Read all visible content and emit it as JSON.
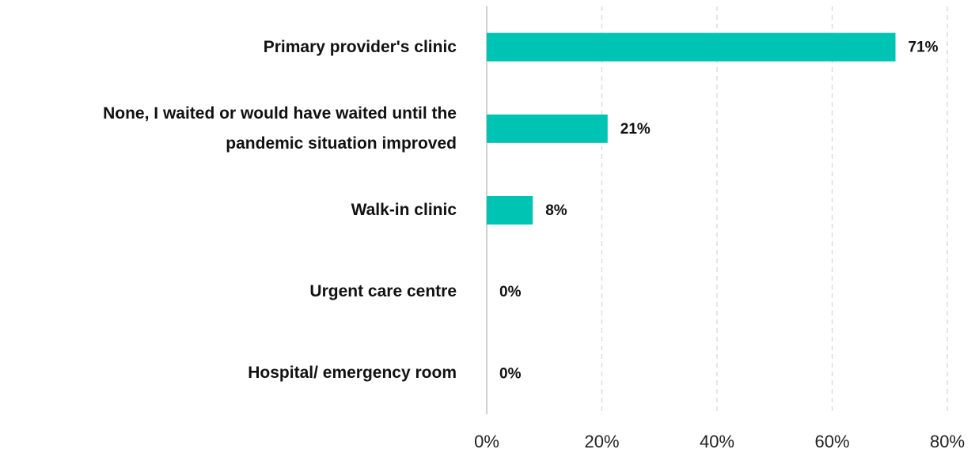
{
  "chart_data": {
    "type": "bar",
    "orientation": "horizontal",
    "categories": [
      "Primary provider's clinic",
      "None, I waited or would have waited until the pandemic situation improved",
      "Walk-in clinic",
      "Urgent care centre",
      "Hospital/ emergency room"
    ],
    "values": [
      71,
      21,
      8,
      0,
      0
    ],
    "value_labels": [
      "71%",
      "21%",
      "8%",
      "0%",
      "0%"
    ],
    "color": "#00c4b3",
    "xlim": [
      0,
      80
    ],
    "xticks": [
      {
        "value": 0,
        "label": "0%"
      },
      {
        "value": 20,
        "label": "20%"
      },
      {
        "value": 40,
        "label": "40%"
      },
      {
        "value": 60,
        "label": "60%"
      },
      {
        "value": 80,
        "label": "80%"
      }
    ],
    "grid": true
  }
}
